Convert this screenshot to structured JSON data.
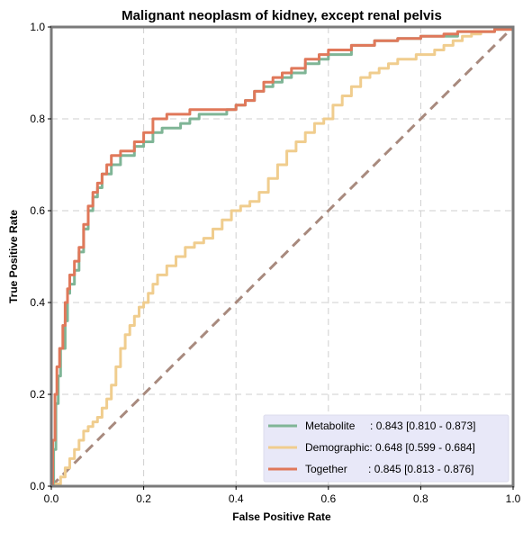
{
  "chart_data": {
    "type": "line",
    "title": "Malignant neoplasm of kidney, except renal pelvis",
    "xlabel": "False Positive Rate",
    "ylabel": "True Positive Rate",
    "xlim": [
      0,
      1
    ],
    "ylim": [
      0,
      1
    ],
    "x_ticks": [
      "0.0",
      "0.2",
      "0.4",
      "0.6",
      "0.8",
      "1.0"
    ],
    "y_ticks": [
      "0.0",
      "0.2",
      "0.4",
      "0.6",
      "0.8",
      "1.0"
    ],
    "grid": true,
    "legend_position": "bottom-right",
    "legend_background": "#e8e8f8",
    "chance_line": {
      "points": [
        [
          0,
          0
        ],
        [
          1,
          1
        ]
      ],
      "color": "#a88a7e",
      "style": "dashed"
    },
    "series": [
      {
        "name": "Metabolite",
        "legend_label": "Metabolite     : 0.843 [0.810 - 0.873]",
        "color": "#7fb596",
        "points": [
          [
            0,
            0
          ],
          [
            0.005,
            0.08
          ],
          [
            0.01,
            0.18
          ],
          [
            0.015,
            0.24
          ],
          [
            0.02,
            0.3
          ],
          [
            0.03,
            0.36
          ],
          [
            0.035,
            0.42
          ],
          [
            0.04,
            0.44
          ],
          [
            0.05,
            0.47
          ],
          [
            0.06,
            0.51
          ],
          [
            0.07,
            0.56
          ],
          [
            0.08,
            0.6
          ],
          [
            0.09,
            0.63
          ],
          [
            0.1,
            0.65
          ],
          [
            0.11,
            0.68
          ],
          [
            0.13,
            0.7
          ],
          [
            0.15,
            0.72
          ],
          [
            0.18,
            0.74
          ],
          [
            0.2,
            0.75
          ],
          [
            0.22,
            0.77
          ],
          [
            0.24,
            0.78
          ],
          [
            0.26,
            0.78
          ],
          [
            0.28,
            0.79
          ],
          [
            0.3,
            0.8
          ],
          [
            0.32,
            0.81
          ],
          [
            0.38,
            0.82
          ],
          [
            0.4,
            0.83
          ],
          [
            0.42,
            0.84
          ],
          [
            0.44,
            0.86
          ],
          [
            0.46,
            0.87
          ],
          [
            0.48,
            0.88
          ],
          [
            0.5,
            0.89
          ],
          [
            0.52,
            0.9
          ],
          [
            0.55,
            0.92
          ],
          [
            0.58,
            0.93
          ],
          [
            0.6,
            0.94
          ],
          [
            0.62,
            0.94
          ],
          [
            0.65,
            0.96
          ],
          [
            0.7,
            0.97
          ],
          [
            0.75,
            0.975
          ],
          [
            0.8,
            0.98
          ],
          [
            0.85,
            0.98
          ],
          [
            0.88,
            0.99
          ],
          [
            0.92,
            0.99
          ],
          [
            0.96,
            0.995
          ],
          [
            1,
            1
          ]
        ]
      },
      {
        "name": "Demographic",
        "legend_label": "Demographic: 0.648 [0.599 - 0.684]",
        "color": "#f0cd8e",
        "points": [
          [
            0,
            0
          ],
          [
            0.01,
            0.005
          ],
          [
            0.02,
            0.02
          ],
          [
            0.03,
            0.04
          ],
          [
            0.04,
            0.06
          ],
          [
            0.05,
            0.08
          ],
          [
            0.06,
            0.1
          ],
          [
            0.07,
            0.12
          ],
          [
            0.08,
            0.13
          ],
          [
            0.09,
            0.14
          ],
          [
            0.1,
            0.15
          ],
          [
            0.11,
            0.17
          ],
          [
            0.12,
            0.19
          ],
          [
            0.13,
            0.22
          ],
          [
            0.14,
            0.26
          ],
          [
            0.15,
            0.3
          ],
          [
            0.16,
            0.33
          ],
          [
            0.17,
            0.35
          ],
          [
            0.18,
            0.37
          ],
          [
            0.19,
            0.39
          ],
          [
            0.2,
            0.4
          ],
          [
            0.21,
            0.42
          ],
          [
            0.22,
            0.44
          ],
          [
            0.23,
            0.46
          ],
          [
            0.25,
            0.48
          ],
          [
            0.27,
            0.5
          ],
          [
            0.29,
            0.52
          ],
          [
            0.31,
            0.53
          ],
          [
            0.33,
            0.54
          ],
          [
            0.35,
            0.56
          ],
          [
            0.37,
            0.58
          ],
          [
            0.39,
            0.6
          ],
          [
            0.41,
            0.61
          ],
          [
            0.43,
            0.62
          ],
          [
            0.45,
            0.64
          ],
          [
            0.47,
            0.67
          ],
          [
            0.49,
            0.7
          ],
          [
            0.51,
            0.73
          ],
          [
            0.53,
            0.75
          ],
          [
            0.55,
            0.77
          ],
          [
            0.57,
            0.79
          ],
          [
            0.59,
            0.8
          ],
          [
            0.61,
            0.83
          ],
          [
            0.63,
            0.85
          ],
          [
            0.65,
            0.87
          ],
          [
            0.67,
            0.89
          ],
          [
            0.69,
            0.9
          ],
          [
            0.71,
            0.91
          ],
          [
            0.73,
            0.92
          ],
          [
            0.75,
            0.93
          ],
          [
            0.77,
            0.93
          ],
          [
            0.79,
            0.94
          ],
          [
            0.81,
            0.94
          ],
          [
            0.83,
            0.95
          ],
          [
            0.85,
            0.96
          ],
          [
            0.87,
            0.97
          ],
          [
            0.89,
            0.98
          ],
          [
            0.91,
            0.985
          ],
          [
            0.93,
            0.99
          ],
          [
            0.96,
            0.995
          ],
          [
            1,
            1
          ]
        ]
      },
      {
        "name": "Together",
        "legend_label": "Together       : 0.845 [0.813 - 0.876]",
        "color": "#e0785a",
        "points": [
          [
            0,
            0
          ],
          [
            0.003,
            0.1
          ],
          [
            0.008,
            0.2
          ],
          [
            0.012,
            0.26
          ],
          [
            0.018,
            0.3
          ],
          [
            0.025,
            0.35
          ],
          [
            0.03,
            0.4
          ],
          [
            0.035,
            0.43
          ],
          [
            0.04,
            0.46
          ],
          [
            0.05,
            0.49
          ],
          [
            0.06,
            0.52
          ],
          [
            0.07,
            0.57
          ],
          [
            0.08,
            0.61
          ],
          [
            0.09,
            0.64
          ],
          [
            0.1,
            0.66
          ],
          [
            0.11,
            0.68
          ],
          [
            0.12,
            0.7
          ],
          [
            0.13,
            0.72
          ],
          [
            0.15,
            0.73
          ],
          [
            0.18,
            0.75
          ],
          [
            0.2,
            0.77
          ],
          [
            0.22,
            0.8
          ],
          [
            0.25,
            0.81
          ],
          [
            0.28,
            0.81
          ],
          [
            0.3,
            0.82
          ],
          [
            0.32,
            0.82
          ],
          [
            0.38,
            0.82
          ],
          [
            0.4,
            0.83
          ],
          [
            0.42,
            0.84
          ],
          [
            0.44,
            0.86
          ],
          [
            0.46,
            0.88
          ],
          [
            0.48,
            0.89
          ],
          [
            0.5,
            0.9
          ],
          [
            0.52,
            0.91
          ],
          [
            0.55,
            0.93
          ],
          [
            0.58,
            0.94
          ],
          [
            0.6,
            0.95
          ],
          [
            0.62,
            0.95
          ],
          [
            0.65,
            0.96
          ],
          [
            0.7,
            0.97
          ],
          [
            0.75,
            0.975
          ],
          [
            0.8,
            0.98
          ],
          [
            0.85,
            0.985
          ],
          [
            0.88,
            0.99
          ],
          [
            0.92,
            0.99
          ],
          [
            0.96,
            0.995
          ],
          [
            1,
            1
          ]
        ]
      }
    ]
  }
}
